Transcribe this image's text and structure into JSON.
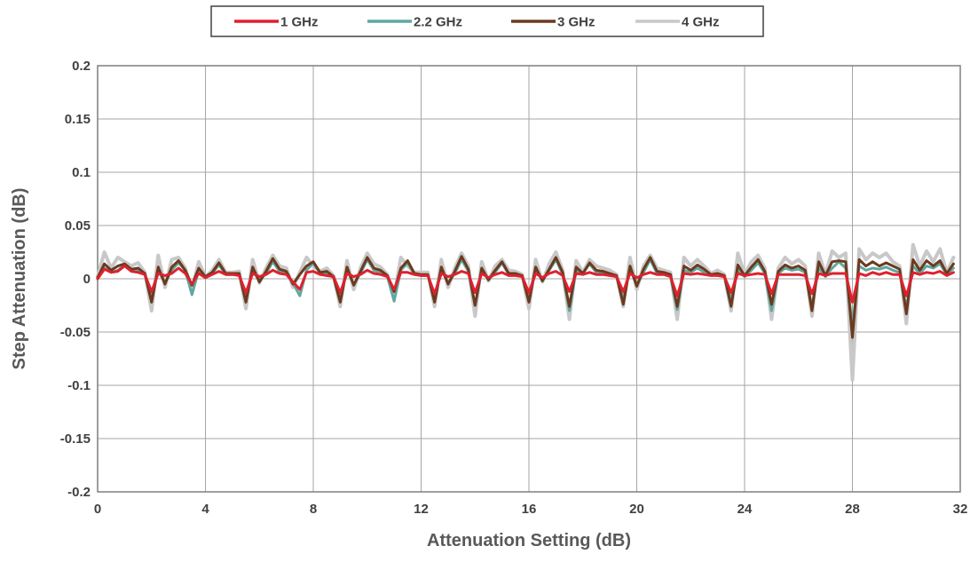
{
  "chart_data": {
    "type": "line",
    "xlabel": "Attenuation Setting (dB)",
    "ylabel": "Step Attenuation (dB)",
    "xlim": [
      0,
      32
    ],
    "ylim": [
      -0.2,
      0.2
    ],
    "x_ticks": [
      "0",
      "4",
      "8",
      "12",
      "16",
      "20",
      "24",
      "28",
      "32"
    ],
    "y_ticks": [
      "0.2",
      "0.15",
      "0.1",
      "0.05",
      "0",
      "-0.05",
      "-0.1",
      "-0.15",
      "-0.2"
    ],
    "x_tick_values": [
      0,
      4,
      8,
      12,
      16,
      20,
      24,
      28,
      32
    ],
    "y_tick_values": [
      0.2,
      0.15,
      0.1,
      0.05,
      0,
      -0.05,
      -0.1,
      -0.15,
      -0.2
    ],
    "grid": true,
    "legend_position": "top",
    "x": [
      0,
      0.25,
      0.5,
      0.75,
      1,
      1.25,
      1.5,
      1.75,
      2,
      2.25,
      2.5,
      2.75,
      3,
      3.25,
      3.5,
      3.75,
      4,
      4.25,
      4.5,
      4.75,
      5,
      5.25,
      5.5,
      5.75,
      6,
      6.25,
      6.5,
      6.75,
      7,
      7.25,
      7.5,
      7.75,
      8,
      8.25,
      8.5,
      8.75,
      9,
      9.25,
      9.5,
      9.75,
      10,
      10.25,
      10.5,
      10.75,
      11,
      11.25,
      11.5,
      11.75,
      12,
      12.25,
      12.5,
      12.75,
      13,
      13.25,
      13.5,
      13.75,
      14,
      14.25,
      14.5,
      14.75,
      15,
      15.25,
      15.5,
      15.75,
      16,
      16.25,
      16.5,
      16.75,
      17,
      17.25,
      17.5,
      17.75,
      18,
      18.25,
      18.5,
      18.75,
      19,
      19.25,
      19.5,
      19.75,
      20,
      20.25,
      20.5,
      20.75,
      21,
      21.25,
      21.5,
      21.75,
      22,
      22.25,
      22.5,
      22.75,
      23,
      23.25,
      23.5,
      23.75,
      24,
      24.25,
      24.5,
      24.75,
      25,
      25.25,
      25.5,
      25.75,
      26,
      26.25,
      26.5,
      26.75,
      27,
      27.25,
      27.5,
      27.75,
      28,
      28.25,
      28.5,
      28.75,
      29,
      29.25,
      29.5,
      29.75,
      30,
      30.25,
      30.5,
      30.75,
      31,
      31.25,
      31.5,
      31.75
    ],
    "series": [
      {
        "name": "4 GHz",
        "color": "#c8c8c8",
        "width": 4,
        "values": [
          0.002,
          0.025,
          0.01,
          0.02,
          0.016,
          0.012,
          0.015,
          0.006,
          -0.03,
          0.022,
          -0.008,
          0.018,
          0.02,
          0.01,
          -0.01,
          0.016,
          0.002,
          0.008,
          0.018,
          0.006,
          0.006,
          0.007,
          -0.028,
          0.018,
          -0.004,
          0.01,
          0.022,
          0.012,
          0.01,
          -0.008,
          0.006,
          0.02,
          0.012,
          0.007,
          0.01,
          0.003,
          -0.026,
          0.017,
          -0.01,
          0.01,
          0.024,
          0.014,
          0.011,
          0.004,
          -0.016,
          0.02,
          0.012,
          0.006,
          0.006,
          0.006,
          -0.026,
          0.018,
          -0.008,
          0.01,
          0.024,
          0.012,
          -0.035,
          0.016,
          -0.002,
          0.012,
          0.018,
          0.008,
          0.007,
          0.004,
          -0.028,
          0.018,
          -0.003,
          0.014,
          0.025,
          0.008,
          -0.038,
          0.017,
          0.006,
          0.018,
          0.012,
          0.01,
          0.008,
          0.004,
          -0.026,
          0.02,
          -0.01,
          0.012,
          0.022,
          0.01,
          0.008,
          0.006,
          -0.038,
          0.02,
          0.012,
          0.018,
          0.012,
          0.005,
          0.008,
          0.004,
          -0.03,
          0.024,
          0.004,
          0.016,
          0.022,
          0.01,
          -0.038,
          0.01,
          0.02,
          0.014,
          0.018,
          0.012,
          -0.035,
          0.024,
          0.004,
          0.026,
          0.02,
          0.024,
          -0.095,
          0.028,
          0.018,
          0.024,
          0.02,
          0.024,
          0.016,
          0.012,
          -0.042,
          0.032,
          0.012,
          0.026,
          0.016,
          0.028,
          0.006,
          0.02
        ]
      },
      {
        "name": "2.2 GHz",
        "color": "#5fa8a0",
        "width": 3,
        "values": [
          0,
          0.01,
          0.006,
          0.008,
          0.013,
          0.008,
          0.008,
          0.004,
          -0.016,
          0.008,
          -0.004,
          0.008,
          0.015,
          0.008,
          -0.015,
          0.008,
          0.001,
          0.005,
          0.013,
          0.004,
          0.004,
          0.004,
          -0.018,
          0.008,
          -0.002,
          0.005,
          0.016,
          0.007,
          0.005,
          -0.004,
          -0.016,
          0.008,
          0.015,
          0.005,
          0.005,
          0.001,
          -0.016,
          0.008,
          -0.005,
          0.005,
          0.018,
          0.008,
          0.006,
          0.002,
          -0.021,
          0.008,
          0.015,
          0.004,
          0.003,
          0.003,
          -0.016,
          0.009,
          -0.004,
          0.005,
          0.018,
          0.007,
          -0.025,
          0.008,
          -0.001,
          0.006,
          0.015,
          0.004,
          0.004,
          0.002,
          -0.019,
          0.009,
          -0.002,
          0.008,
          0.018,
          0.004,
          -0.03,
          0.008,
          0.005,
          0.014,
          0.006,
          0.005,
          0.004,
          0.002,
          -0.019,
          0.009,
          -0.006,
          0.006,
          0.018,
          0.005,
          0.005,
          0.003,
          -0.029,
          0.008,
          0.006,
          0.01,
          0.006,
          0.003,
          0.004,
          0.002,
          -0.02,
          0.009,
          0.002,
          0.008,
          0.015,
          0.005,
          -0.03,
          0.005,
          0.01,
          0.008,
          0.009,
          0.006,
          -0.026,
          0.01,
          0.002,
          0.01,
          0.016,
          0.01,
          -0.045,
          0.012,
          0.008,
          0.01,
          0.009,
          0.011,
          0.008,
          0.006,
          -0.028,
          0.012,
          0.005,
          0.012,
          0.01,
          0.014,
          0.004,
          0.01
        ]
      },
      {
        "name": "3 GHz",
        "color": "#6b3a1f",
        "width": 3,
        "values": [
          0.001,
          0.014,
          0.008,
          0.012,
          0.014,
          0.009,
          0.01,
          0.005,
          -0.022,
          0.011,
          -0.005,
          0.011,
          0.017,
          0.008,
          -0.006,
          0.01,
          0.002,
          0.006,
          0.015,
          0.005,
          0.005,
          0.005,
          -0.022,
          0.011,
          -0.003,
          0.007,
          0.019,
          0.009,
          0.007,
          -0.005,
          0.004,
          0.012,
          0.016,
          0.006,
          0.007,
          0.002,
          -0.022,
          0.011,
          -0.006,
          0.007,
          0.02,
          0.01,
          0.008,
          0.003,
          -0.012,
          0.01,
          0.017,
          0.005,
          0.004,
          0.004,
          -0.022,
          0.011,
          -0.005,
          0.007,
          0.021,
          0.009,
          -0.025,
          0.01,
          -0.001,
          0.008,
          0.016,
          0.005,
          0.005,
          0.003,
          -0.022,
          0.011,
          -0.002,
          0.009,
          0.02,
          0.006,
          -0.026,
          0.011,
          0.005,
          0.015,
          0.008,
          0.007,
          0.005,
          0.003,
          -0.024,
          0.012,
          -0.007,
          0.009,
          0.02,
          0.007,
          0.006,
          0.004,
          -0.026,
          0.012,
          0.008,
          0.013,
          0.009,
          0.004,
          0.005,
          0.003,
          -0.026,
          0.013,
          0.003,
          0.011,
          0.018,
          0.007,
          -0.024,
          0.007,
          0.013,
          0.01,
          0.012,
          0.008,
          -0.03,
          0.016,
          0.003,
          0.016,
          0.017,
          0.016,
          -0.055,
          0.018,
          0.012,
          0.016,
          0.012,
          0.015,
          0.012,
          0.009,
          -0.033,
          0.018,
          0.008,
          0.017,
          0.012,
          0.017,
          0.005,
          0.014
        ]
      },
      {
        "name": "1 GHz",
        "color": "#e0202e",
        "width": 3,
        "values": [
          0,
          0.009,
          0.006,
          0.007,
          0.012,
          0.007,
          0.006,
          0.004,
          -0.012,
          0.005,
          0.003,
          0.005,
          0.01,
          0.005,
          -0.005,
          0.005,
          0.001,
          0.004,
          0.007,
          0.004,
          0.004,
          0.003,
          -0.013,
          0.005,
          0.002,
          0.004,
          0.008,
          0.005,
          0.004,
          -0.003,
          -0.01,
          0.006,
          0.007,
          0.004,
          0.003,
          0.002,
          -0.013,
          0.005,
          0.002,
          0.004,
          0.008,
          0.005,
          0.004,
          0.002,
          -0.01,
          0.006,
          0.006,
          0.004,
          0.003,
          0.003,
          -0.014,
          0.005,
          0.002,
          0.004,
          0.007,
          0.005,
          -0.013,
          0.005,
          0.001,
          0.004,
          0.006,
          0.003,
          0.003,
          0.002,
          -0.013,
          0.005,
          0.001,
          0.005,
          0.007,
          0.003,
          -0.012,
          0.005,
          0.004,
          0.006,
          0.004,
          0.004,
          0.003,
          0.002,
          -0.012,
          0.005,
          0.001,
          0.004,
          0.006,
          0.004,
          0.004,
          0.002,
          -0.016,
          0.005,
          0.004,
          0.005,
          0.004,
          0.003,
          0.003,
          0.002,
          -0.013,
          0.005,
          0.003,
          0.004,
          0.005,
          0.004,
          -0.014,
          0.004,
          0.004,
          0.004,
          0.004,
          0.003,
          -0.014,
          0.005,
          0.003,
          0.005,
          0.005,
          0.005,
          -0.022,
          0.005,
          0.003,
          0.006,
          0.004,
          0.006,
          0.004,
          0.004,
          -0.016,
          0.006,
          0.004,
          0.006,
          0.005,
          0.007,
          0.003,
          0.006
        ]
      }
    ],
    "legend": [
      {
        "label": "1 GHz",
        "color": "#e0202e"
      },
      {
        "label": "2.2 GHz",
        "color": "#5fa8a0"
      },
      {
        "label": "3 GHz",
        "color": "#6b3a1f"
      },
      {
        "label": "4 GHz",
        "color": "#c8c8c8"
      }
    ]
  }
}
